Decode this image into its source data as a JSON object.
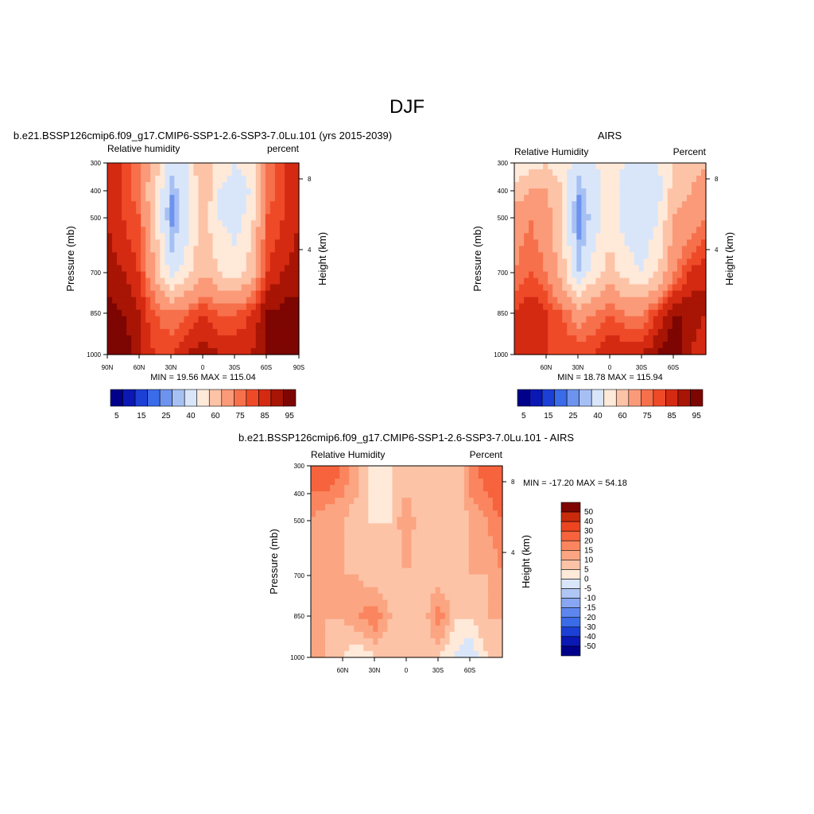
{
  "figure_title": "DJF",
  "colors": {
    "abs_scale": [
      "#00008b",
      "#0b18b4",
      "#1c3fd6",
      "#3a6be8",
      "#6d93ee",
      "#a7c0f4",
      "#d9e6fa",
      "#ffe9d9",
      "#fdc3a7",
      "#fb9a78",
      "#f7704c",
      "#ef4a28",
      "#d42a12",
      "#a81504",
      "#7d0502"
    ],
    "diff_scale": [
      "#00008b",
      "#0b18b4",
      "#1c3fd6",
      "#3a6be8",
      "#5d86ee",
      "#88a6f1",
      "#b0c6f5",
      "#d9e6fa",
      "#ffe9d9",
      "#fdc3a7",
      "#fba582",
      "#fb855e",
      "#f6633d",
      "#ec4520",
      "#c82a0c",
      "#7d0502"
    ]
  },
  "chart_data": [
    {
      "type": "heatmap",
      "title": "b.e21.BSSP126cmip6.f09_g17.CMIP6-SSP1-2.6-SSP3-7.0Lu.101 (yrs 2015-2039)",
      "left_label": "Relative humidity",
      "right_label": "percent",
      "ylabel": "Pressure (mb)",
      "y2label": "Height (km)",
      "x_ticks": [
        "90N",
        "60N",
        "30N",
        "0",
        "30S",
        "60S",
        "90S"
      ],
      "y_ticks": [
        "300",
        "400",
        "500",
        "700",
        "850",
        "1000"
      ],
      "y2_ticks": [
        "8",
        "4"
      ],
      "stats": "MIN =  19.56  MAX = 115.04",
      "colorbar_labels": [
        "5",
        "15",
        "25",
        "40",
        "60",
        "75",
        "85",
        "95"
      ],
      "levels": [
        300,
        400,
        500,
        700,
        850,
        1000
      ],
      "lat": [
        90,
        75,
        60,
        45,
        30,
        15,
        0,
        -15,
        -30,
        -45,
        -60,
        -75,
        -90
      ],
      "values": [
        [
          85,
          80,
          70,
          55,
          35,
          40,
          60,
          45,
          40,
          45,
          70,
          80,
          85
        ],
        [
          85,
          80,
          70,
          50,
          25,
          35,
          60,
          40,
          35,
          40,
          70,
          80,
          85
        ],
        [
          85,
          80,
          75,
          50,
          22,
          35,
          55,
          40,
          35,
          45,
          75,
          80,
          85
        ],
        [
          88,
          85,
          80,
          60,
          35,
          45,
          60,
          50,
          45,
          55,
          80,
          85,
          88
        ],
        [
          92,
          90,
          85,
          75,
          70,
          75,
          80,
          75,
          75,
          80,
          90,
          92,
          92
        ],
        [
          95,
          95,
          85,
          80,
          80,
          85,
          88,
          85,
          85,
          85,
          90,
          95,
          95
        ]
      ]
    },
    {
      "type": "heatmap",
      "title": "AIRS",
      "left_label": "Relative Humidity",
      "right_label": "Percent",
      "ylabel": "Pressure (mb)",
      "y2label": "Height (km)",
      "x_ticks": [
        "60N",
        "30N",
        "0",
        "30S",
        "60S"
      ],
      "y_ticks": [
        "300",
        "400",
        "500",
        "700",
        "850",
        "1000"
      ],
      "y2_ticks": [
        "8",
        "4"
      ],
      "stats": "MIN =  18.78  MAX = 115.94",
      "colorbar_labels": [
        "5",
        "15",
        "25",
        "40",
        "60",
        "75",
        "85",
        "95"
      ],
      "levels": [
        300,
        400,
        500,
        700,
        850,
        1000
      ],
      "lat": [
        90,
        75,
        60,
        45,
        30,
        15,
        0,
        -15,
        -30,
        -45,
        -60,
        -75,
        -90
      ],
      "values": [
        [
          40,
          45,
          50,
          45,
          35,
          40,
          45,
          40,
          35,
          40,
          50,
          55,
          60
        ],
        [
          55,
          60,
          60,
          50,
          25,
          35,
          45,
          35,
          30,
          35,
          55,
          60,
          65
        ],
        [
          65,
          70,
          65,
          50,
          20,
          35,
          45,
          35,
          30,
          40,
          60,
          65,
          70
        ],
        [
          70,
          75,
          70,
          55,
          30,
          45,
          55,
          45,
          40,
          50,
          70,
          80,
          85
        ],
        [
          80,
          85,
          80,
          75,
          65,
          70,
          75,
          70,
          70,
          80,
          90,
          90,
          85
        ],
        [
          85,
          85,
          80,
          80,
          80,
          80,
          85,
          85,
          85,
          90,
          95,
          85,
          80
        ]
      ]
    },
    {
      "type": "heatmap",
      "title": "b.e21.BSSP126cmip6.f09_g17.CMIP6-SSP1-2.6-SSP3-7.0Lu.101 - AIRS",
      "left_label": "Relative Humidity",
      "right_label": "Percent",
      "ylabel": "Pressure (mb)",
      "y2label": "Height (km)",
      "x_ticks": [
        "60N",
        "30N",
        "0",
        "30S",
        "60S"
      ],
      "y_ticks": [
        "300",
        "400",
        "500",
        "700",
        "850",
        "1000"
      ],
      "y2_ticks": [
        "8",
        "4"
      ],
      "stats": "MIN = -17.20  MAX =  54.18",
      "colorbar_labels": [
        "50",
        "40",
        "30",
        "20",
        "15",
        "10",
        "5",
        "0",
        "-5",
        "-10",
        "-15",
        "-20",
        "-30",
        "-40",
        "-50"
      ],
      "levels": [
        300,
        400,
        500,
        700,
        850,
        1000
      ],
      "lat": [
        90,
        75,
        60,
        45,
        30,
        15,
        0,
        -15,
        -30,
        -45,
        -60,
        -75,
        -90
      ],
      "values": [
        [
          25,
          25,
          20,
          10,
          0,
          5,
          10,
          5,
          5,
          5,
          15,
          25,
          30
        ],
        [
          20,
          20,
          15,
          10,
          0,
          5,
          10,
          5,
          5,
          5,
          15,
          20,
          25
        ],
        [
          15,
          10,
          10,
          5,
          5,
          5,
          15,
          5,
          5,
          5,
          10,
          15,
          20
        ],
        [
          15,
          15,
          10,
          10,
          5,
          5,
          10,
          5,
          5,
          10,
          10,
          10,
          15
        ],
        [
          10,
          10,
          10,
          15,
          20,
          10,
          5,
          5,
          20,
          5,
          5,
          10,
          10
        ],
        [
          15,
          10,
          5,
          0,
          5,
          5,
          5,
          5,
          5,
          0,
          -5,
          5,
          10
        ]
      ]
    }
  ]
}
